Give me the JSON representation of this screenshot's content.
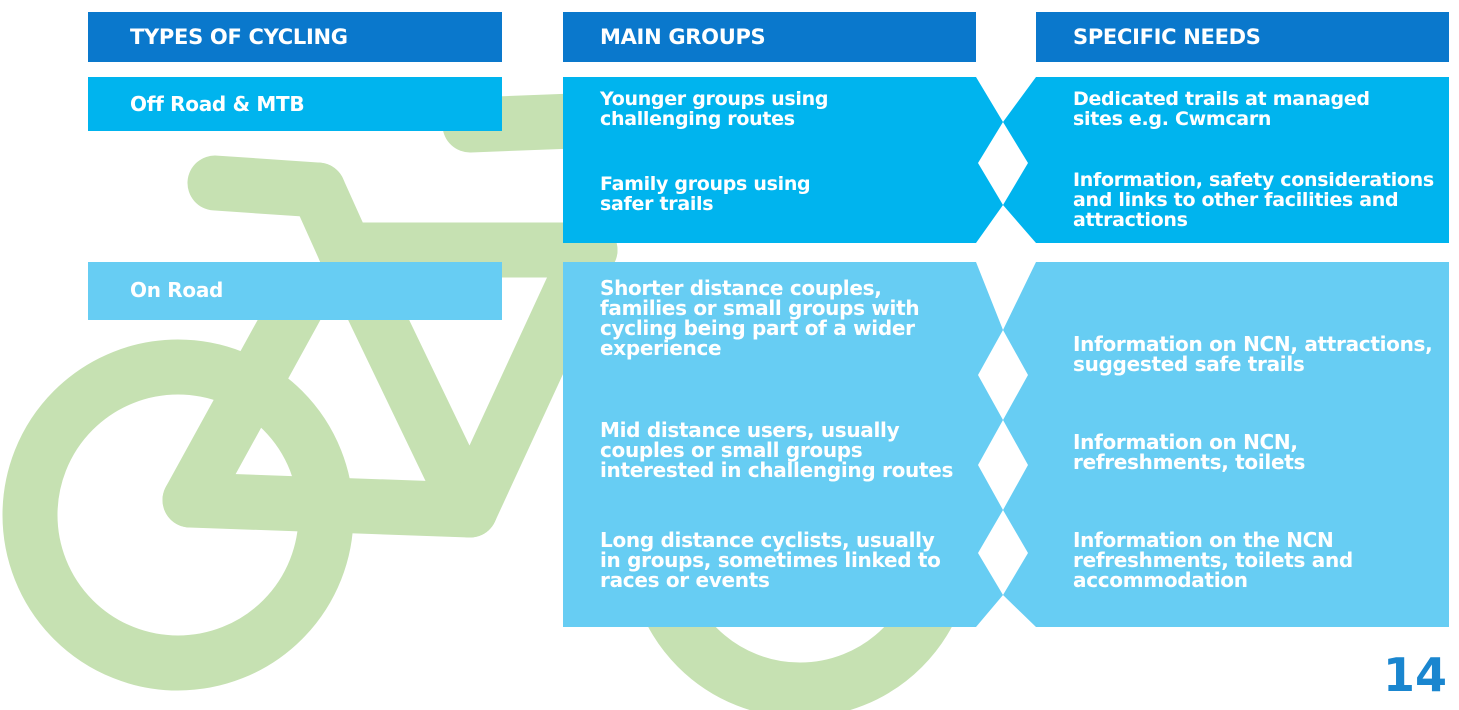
{
  "headers": [
    "TYPES OF CYCLING",
    "MAIN GROUPS",
    "SPECIFIC NEEDS"
  ],
  "rows": [
    {
      "type": "Off Road & MTB",
      "main_groups": [
        "Younger groups using challenging routes",
        "Family groups using safer trails"
      ],
      "specific_needs": [
        "Dedicated trails at managed sites e.g. Cwmcarn",
        "Information, safety considerations and links to other facilities and attractions"
      ]
    },
    {
      "type": "On Road",
      "main_groups": [
        "Shorter distance couples, families or small groups with cycling being part of a wider experience",
        "Mid distance users, usually couples or small groups interested in challenging routes",
        "Long distance cyclists, usually in groups, sometimes linked to races or events"
      ],
      "specific_needs": [
        "Information on NCN, attractions, suggested safe trails",
        "Information on NCN, refreshments, toilets",
        "Information on the NCN refreshments, toilets and accommodation"
      ]
    }
  ],
  "page_number": "14"
}
